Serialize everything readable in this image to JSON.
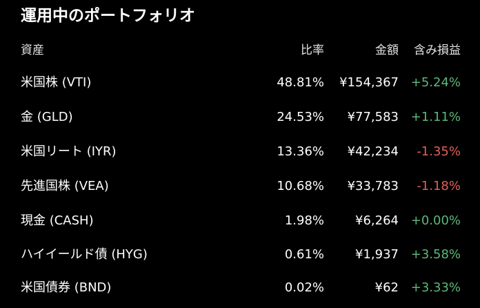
{
  "title": "運用中のポートフォリオ",
  "headers": {
    "asset": "資産",
    "ratio": "比率",
    "amount": "金額",
    "pl": "含み損益"
  },
  "colors": {
    "background": "#000000",
    "text": "#ffffff",
    "positive": "#5cb87a",
    "negative": "#e0605a"
  },
  "rows": [
    {
      "name": "米国株 (VTI)",
      "ratio": "48.81%",
      "amount": "¥154,367",
      "pl": "+5.24%"
    },
    {
      "name": "金 (GLD)",
      "ratio": "24.53%",
      "amount": "¥77,583",
      "pl": "+1.11%"
    },
    {
      "name": "米国リート (IYR)",
      "ratio": "13.36%",
      "amount": "¥42,234",
      "pl": "-1.35%"
    },
    {
      "name": "先進国株 (VEA)",
      "ratio": "10.68%",
      "amount": "¥33,783",
      "pl": "-1.18%"
    },
    {
      "name": "現金 (CASH)",
      "ratio": "1.98%",
      "amount": "¥6,264",
      "pl": "+0.00%"
    },
    {
      "name": "ハイイールド債 (HYG)",
      "ratio": "0.61%",
      "amount": "¥1,937",
      "pl": "+3.58%"
    },
    {
      "name": "米国債券 (BND)",
      "ratio": "0.02%",
      "amount": "¥62",
      "pl": "+3.33%"
    }
  ]
}
